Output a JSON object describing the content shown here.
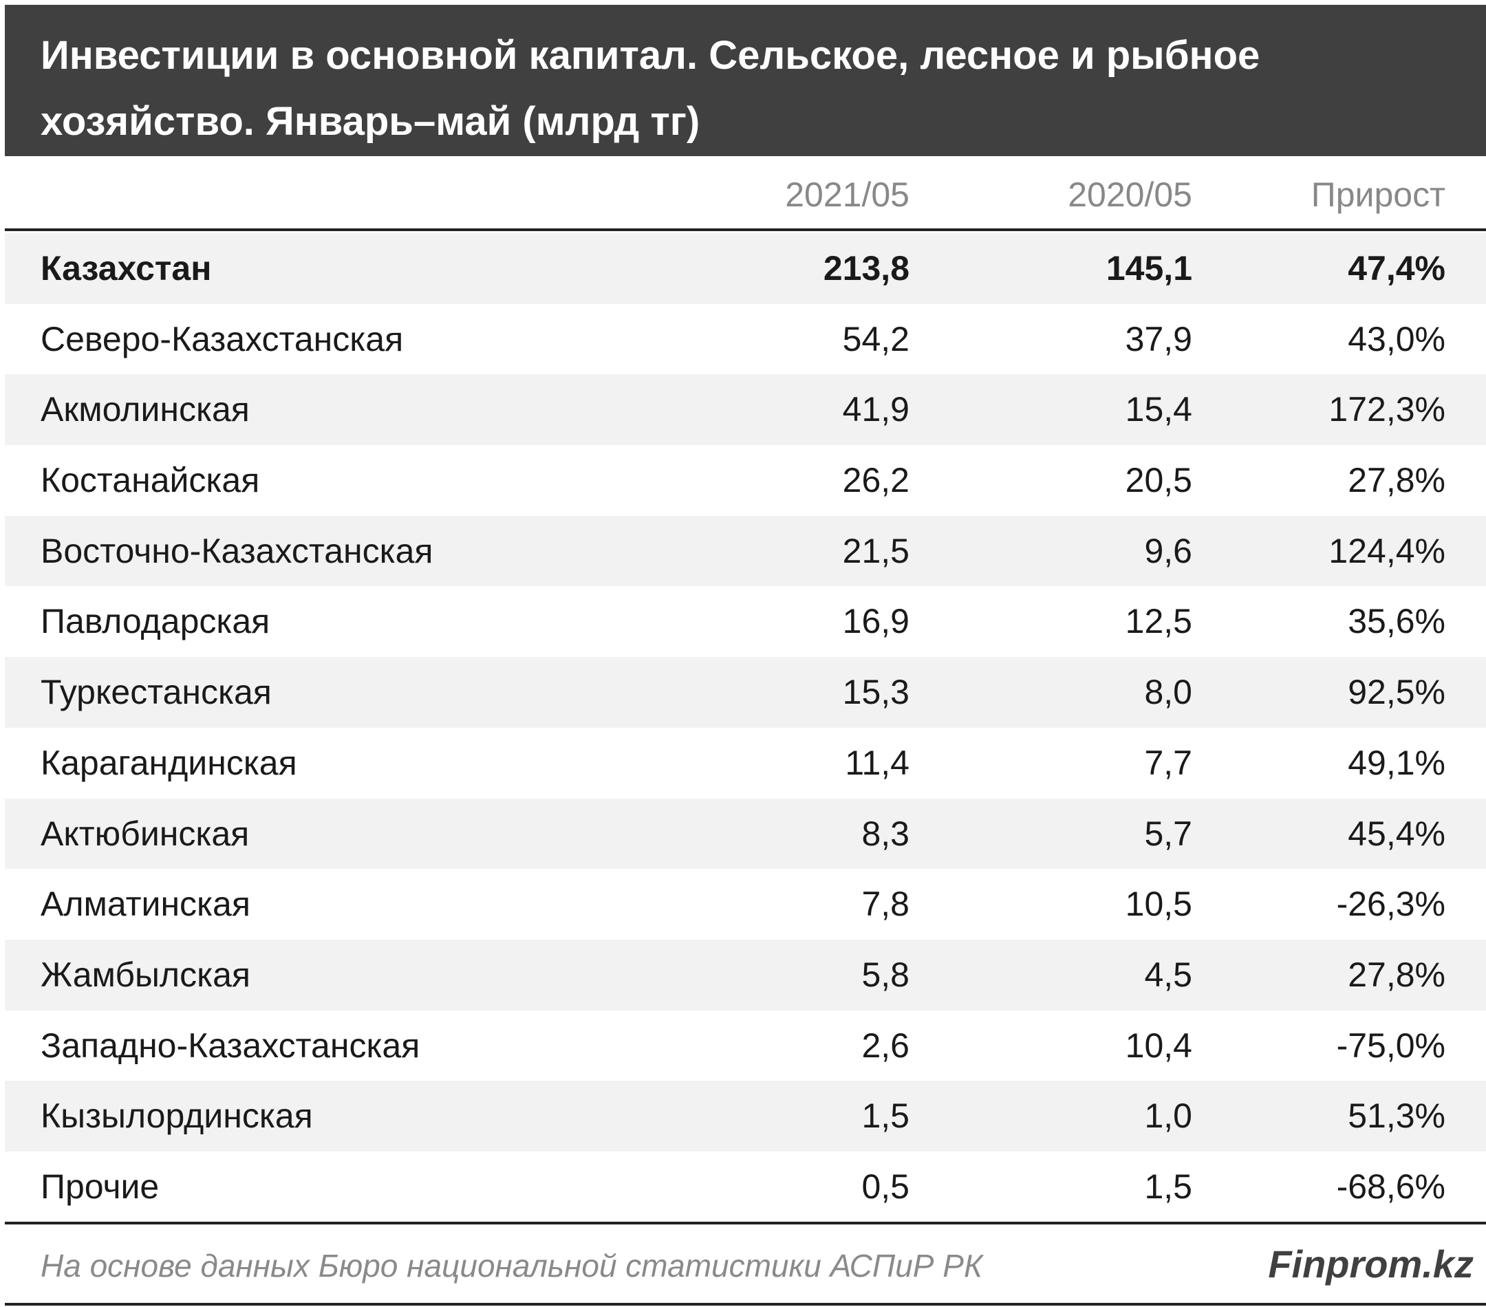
{
  "header": {
    "title_lines": [
      "Инвестиции в основной капитал. Сельское, лесное и рыбное",
      "хозяйство. Январь–май (млрд тг)"
    ]
  },
  "table": {
    "columns": [
      "2021/05",
      "2020/05",
      "Прирост"
    ],
    "rows": [
      [
        "Казахстан",
        "213,8",
        "145,1",
        "47,4%"
      ],
      [
        "Северо-Казахстанская",
        "54,2",
        "37,9",
        "43,0%"
      ],
      [
        "Акмолинская",
        "41,9",
        "15,4",
        "172,3%"
      ],
      [
        "Костанайская",
        "26,2",
        "20,5",
        "27,8%"
      ],
      [
        "Восточно-Казахстанская",
        "21,5",
        "9,6",
        "124,4%"
      ],
      [
        "Павлодарская",
        "16,9",
        "12,5",
        "35,6%"
      ],
      [
        "Туркестанская",
        "15,3",
        "8,0",
        "92,5%"
      ],
      [
        "Карагандинская",
        "11,4",
        "7,7",
        "49,1%"
      ],
      [
        "Актюбинская",
        "8,3",
        "5,7",
        "45,4%"
      ],
      [
        "Алматинская",
        "7,8",
        "10,5",
        "-26,3%"
      ],
      [
        "Жамбылская",
        "5,8",
        "4,5",
        "27,8%"
      ],
      [
        "Западно-Казахстанская",
        "2,6",
        "10,4",
        "-75,0%"
      ],
      [
        "Кызылординская",
        "1,5",
        "1,0",
        "51,3%"
      ],
      [
        "Прочие",
        "0,5",
        "1,5",
        "-68,6%"
      ]
    ]
  },
  "footer": {
    "source": "На основе данных Бюро национальной статистики АСПиР РК",
    "brand": "Finprom.kz"
  }
}
